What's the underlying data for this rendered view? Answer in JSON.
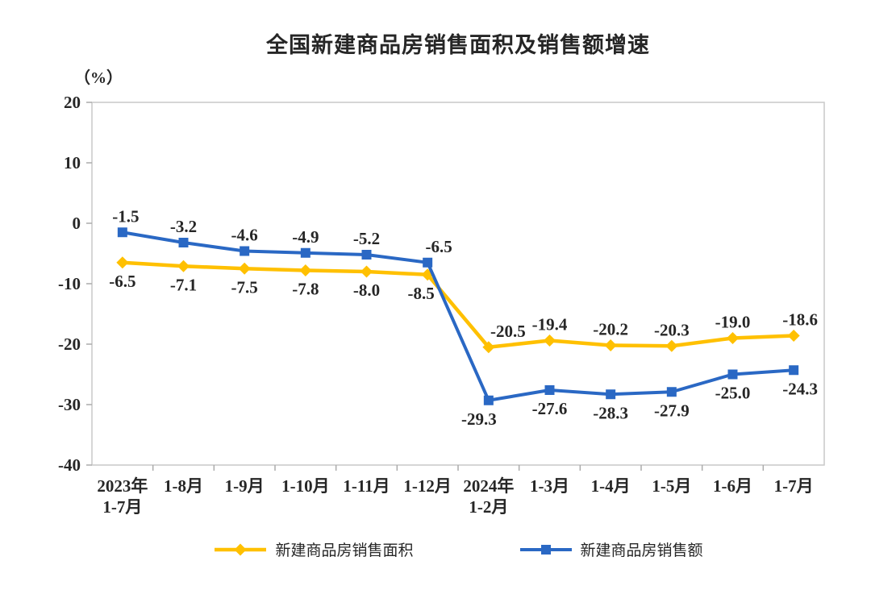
{
  "chart_data": {
    "type": "line",
    "title": "全国新建商品房销售面积及销售额增速",
    "unit_label": "（%）",
    "categories": [
      [
        "2023年",
        "1-7月"
      ],
      "1-8月",
      "1-9月",
      "1-10月",
      "1-11月",
      "1-12月",
      [
        "2024年",
        "1-2月"
      ],
      "1-3月",
      "1-4月",
      "1-5月",
      "1-6月",
      "1-7月"
    ],
    "series": [
      {
        "name": "新建商品房销售面积",
        "color": "#FFC000",
        "marker": "diamond",
        "values": [
          -6.5,
          -7.1,
          -7.5,
          -7.8,
          -8.0,
          -8.5,
          -20.5,
          -19.4,
          -20.2,
          -20.3,
          -19.0,
          -18.6
        ],
        "labels": [
          "-6.5",
          "-7.1",
          "-7.5",
          "-7.8",
          "-8.0",
          "-8.5",
          "-20.5",
          "-19.4",
          "-20.2",
          "-20.3",
          "-19.0",
          "-18.6"
        ],
        "label_positions": [
          "below",
          "below",
          "below",
          "below",
          "below",
          "below",
          "above",
          "above",
          "above",
          "above",
          "above",
          "above"
        ],
        "label_dx": [
          0,
          0,
          0,
          0,
          0,
          -8,
          24,
          0,
          0,
          0,
          0,
          8
        ]
      },
      {
        "name": "新建商品房销售额",
        "color": "#2A68C4",
        "marker": "square",
        "values": [
          -1.5,
          -3.2,
          -4.6,
          -4.9,
          -5.2,
          -6.5,
          -29.3,
          -27.6,
          -28.3,
          -27.9,
          -25.0,
          -24.3
        ],
        "labels": [
          "-1.5",
          "-3.2",
          "-4.6",
          "-4.9",
          "-5.2",
          "-6.5",
          "-29.3",
          "-27.6",
          "-28.3",
          "-27.9",
          "-25.0",
          "-24.3"
        ],
        "label_positions": [
          "above",
          "above",
          "above",
          "above",
          "above",
          "above",
          "below",
          "below",
          "below",
          "below",
          "below",
          "below"
        ],
        "label_dx": [
          4,
          0,
          0,
          0,
          0,
          14,
          -12,
          0,
          0,
          0,
          0,
          8
        ]
      }
    ],
    "ylim": [
      -40,
      20
    ],
    "yticks": [
      20,
      10,
      0,
      -10,
      -20,
      -30,
      -40
    ],
    "grid": false,
    "legend_position": "bottom"
  }
}
